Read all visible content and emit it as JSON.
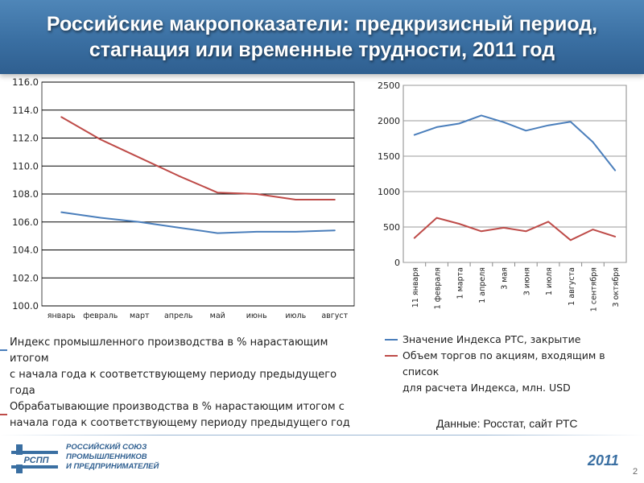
{
  "slide": {
    "title_line1": "Российские макропоказатели: предкризисный период,",
    "title_line2": "стагнация или временные трудности, 2011 год",
    "source_note": "Данные: Росстат, сайт РТС",
    "year_badge": "2011",
    "page_number": "2",
    "logo": {
      "mark_text": "РСПП",
      "line1": "РОССИЙСКИЙ СОЮЗ",
      "line2": "ПРОМЫШЛЕННИКОВ",
      "line3": "И ПРЕДПРИНИМАТЕЛЕЙ"
    },
    "colors": {
      "band": "#3a6fa2",
      "blue_series": "#4a7ebb",
      "red_series": "#be4b48"
    }
  },
  "left_legend": {
    "item1_line1": "Индекс промышленного производства в % нарастающим итогом",
    "item1_line2": "с начала года к соответствующему периоду предыдущего года",
    "item2_line1": "Обрабатывающие производства в % нарастающим итогом с",
    "item2_line2": "начала года к соответствующему периоду предыдущего год"
  },
  "right_legend": {
    "item1_line1": "Значение Индекса РТС, закрытие",
    "item2_line1": "Объем торгов по акциям, входящим в список",
    "item2_line2": "для расчета Индекса, млн.  USD"
  },
  "chart_data": [
    {
      "type": "line",
      "categories": [
        "январь",
        "февраль",
        "март",
        "апрель",
        "май",
        "июнь",
        "июль",
        "август"
      ],
      "ylim": [
        100.0,
        116.0
      ],
      "yticks": [
        "100.0",
        "102.0",
        "104.0",
        "106.0",
        "108.0",
        "110.0",
        "112.0",
        "114.0",
        "116.0"
      ],
      "grid": true,
      "series": [
        {
          "name": "Индекс промышленного производства в % нарастающим итогом с начала года к соответствующему периоду предыдущего года",
          "color": "#4a7ebb",
          "values": [
            106.7,
            106.3,
            106.0,
            105.6,
            105.2,
            105.3,
            105.3,
            105.4
          ]
        },
        {
          "name": "Обрабатывающие производства в % нарастающим итогом с начала года к соответствующему периоду предыдущего год",
          "color": "#be4b48",
          "values": [
            113.5,
            111.9,
            110.6,
            109.3,
            108.1,
            108.0,
            107.6,
            107.6
          ]
        }
      ]
    },
    {
      "type": "line",
      "categories": [
        "11 января",
        "1 февраля",
        "1 марта",
        "1 апреля",
        "3 мая",
        "3 июня",
        "1 июля",
        "1 августа",
        "1 сентября",
        "3 октября"
      ],
      "ylim": [
        0,
        2500
      ],
      "yticks": [
        "0",
        "500",
        "1000",
        "1500",
        "2000",
        "2500"
      ],
      "grid": true,
      "series": [
        {
          "name": "Значение Индекса РТС, закрытие",
          "color": "#4a7ebb",
          "values": [
            1800,
            1910,
            1960,
            2075,
            1980,
            1860,
            1935,
            1985,
            1700,
            1300
          ]
        },
        {
          "name": "Объем торгов по акциям, входящим в список для расчета Индекса, млн.  USD",
          "color": "#be4b48",
          "values": [
            345,
            630,
            545,
            440,
            490,
            440,
            575,
            315,
            465,
            365
          ]
        }
      ]
    }
  ]
}
